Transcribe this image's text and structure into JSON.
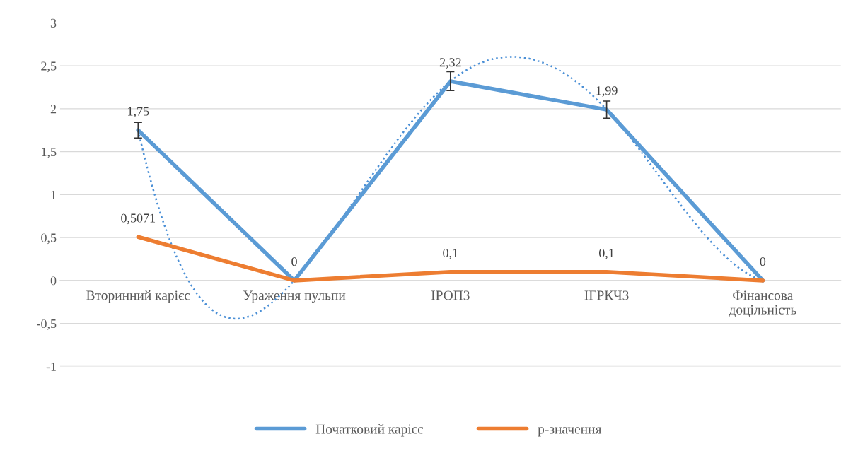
{
  "chart_data": {
    "type": "line",
    "categories": [
      "Вторинний карієс",
      "Ураження пульпи",
      "ІРОПЗ",
      "ІГРКЧЗ",
      "Фінансова доцільність"
    ],
    "series": [
      {
        "name": "Початковий карієс",
        "color": "#5b9bd5",
        "values": [
          1.75,
          0,
          2.32,
          1.99,
          0
        ],
        "errors": [
          0.09,
          null,
          0.11,
          0.1,
          null
        ],
        "value_labels": [
          "1,75",
          "0",
          "2,32",
          "1,99",
          "0"
        ]
      },
      {
        "name": "р-значення",
        "color": "#ed7d31",
        "values": [
          0.5071,
          0,
          0.1,
          0.1,
          0
        ],
        "value_labels": [
          "0,5071",
          null,
          "0,1",
          "0,1",
          null
        ]
      },
      {
        "type": "line",
        "color": "#4a8fd6",
        "line_style": "dotted",
        "values": [
          1.75,
          0,
          2.32,
          1.99,
          0
        ]
      }
    ],
    "ylim": [
      -1,
      3
    ],
    "yticks": [
      -1,
      {
        "value": -0.5,
        "label": "-0,5"
      },
      0,
      {
        "value": 0.5,
        "label": "0,5"
      },
      1,
      {
        "value": 1.5,
        "label": "1,5"
      },
      2,
      {
        "value": 2.5,
        "label": "2,5"
      },
      3
    ],
    "grid": "y",
    "legend": "bottom",
    "line_style": "solid",
    "marker": "none"
  }
}
